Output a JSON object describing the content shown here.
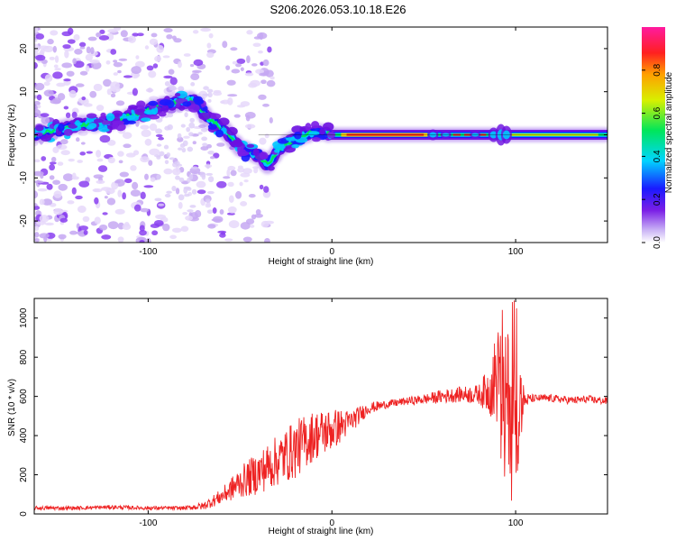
{
  "title": "S206.2026.053.10.18.E26",
  "chart_data": [
    {
      "type": "heatmap",
      "name": "spectrogram",
      "xlabel": "Height of straight line (km)",
      "ylabel": "Frequency (Hz)",
      "xlim": [
        -162,
        150
      ],
      "ylim": [
        -25,
        25
      ],
      "xticks": [
        -100,
        0,
        100
      ],
      "xtick_labels": [
        "-100",
        "0",
        "100"
      ],
      "yticks": [
        -20,
        -10,
        0,
        10,
        20
      ],
      "ytick_labels": [
        "-20",
        "-10",
        "0",
        "10",
        "20"
      ],
      "ridge": {
        "x": [
          -162,
          -150,
          -135,
          -120,
          -105,
          -90,
          -80,
          -75,
          -70,
          -65,
          -58,
          -50,
          -45,
          -40,
          -35,
          -30,
          -25,
          -20,
          -15,
          -10,
          -5,
          0,
          10,
          30,
          50,
          60,
          70,
          80,
          90,
          100,
          110,
          120,
          130,
          140,
          150
        ],
        "y": [
          0,
          1,
          2.5,
          3,
          5,
          7,
          8,
          8,
          5,
          3,
          1,
          -3,
          -4,
          -5,
          -7,
          -4,
          -2,
          -1,
          0,
          0.5,
          0.5,
          0,
          0,
          0,
          0,
          0,
          0,
          0,
          0,
          0,
          0,
          0,
          0,
          0,
          0
        ]
      },
      "colorbar": {
        "label": "Normalized spectral amplitude",
        "range": [
          0,
          1
        ],
        "ticks": [
          0,
          0.2,
          0.4,
          0.6,
          0.8
        ],
        "tick_labels": [
          "0.0",
          "0.2",
          "0.4",
          "0.6",
          "0.8"
        ]
      }
    },
    {
      "type": "line",
      "name": "snr",
      "xlabel": "Height of straight line (km)",
      "ylabel": "SNR (10 * v/v)",
      "xlim": [
        -162,
        150
      ],
      "ylim": [
        0,
        1100
      ],
      "xticks": [
        -100,
        0,
        100
      ],
      "xtick_labels": [
        "-100",
        "0",
        "100"
      ],
      "yticks": [
        0,
        200,
        400,
        600,
        800,
        1000
      ],
      "ytick_labels": [
        "0",
        "200",
        "400",
        "600",
        "800",
        "1000"
      ],
      "series": [
        {
          "name": "SNR",
          "color": "#ee2222",
          "x": [
            -162,
            -140,
            -120,
            -100,
            -80,
            -70,
            -60,
            -50,
            -40,
            -30,
            -20,
            -10,
            0,
            10,
            20,
            30,
            40,
            50,
            60,
            70,
            80,
            85,
            90,
            95,
            100,
            105,
            110,
            120,
            130,
            140,
            150
          ],
          "y": [
            30,
            30,
            35,
            30,
            30,
            40,
            90,
            160,
            210,
            270,
            330,
            400,
            430,
            470,
            540,
            560,
            575,
            585,
            600,
            610,
            610,
            630,
            700,
            600,
            550,
            580,
            590,
            590,
            580,
            585,
            575
          ],
          "noise": [
            10,
            10,
            10,
            10,
            10,
            20,
            40,
            80,
            110,
            130,
            150,
            130,
            110,
            60,
            30,
            20,
            20,
            25,
            35,
            40,
            50,
            120,
            250,
            350,
            420,
            40,
            20,
            20,
            20,
            20,
            20
          ]
        }
      ]
    }
  ]
}
